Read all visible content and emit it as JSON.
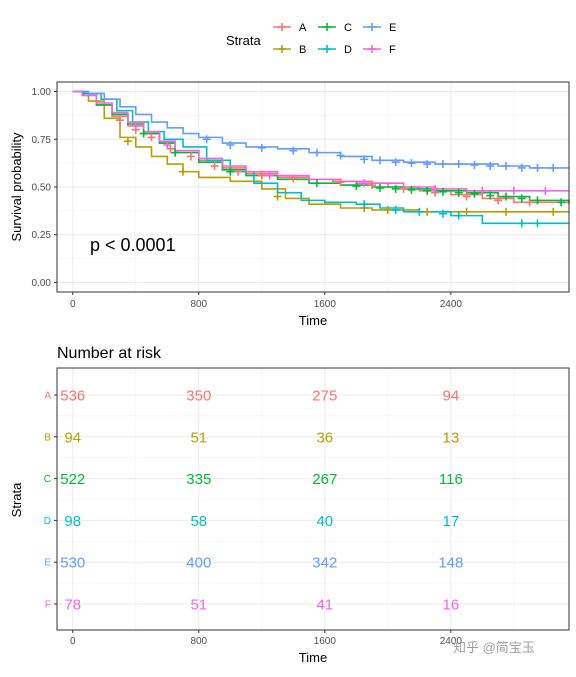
{
  "chart_data": [
    {
      "type": "line",
      "subtype": "kaplan-meier step",
      "xlabel": "Time",
      "ylabel": "Survival probability",
      "xlim": [
        -100,
        3150
      ],
      "ylim": [
        -0.05,
        1.05
      ],
      "x_ticks": [
        "0",
        "800",
        "1600",
        "2400"
      ],
      "y_ticks": [
        "0.00",
        "0.25",
        "0.50",
        "0.75",
        "1.00"
      ],
      "grid": true,
      "legend": {
        "title": "Strata",
        "position": "top",
        "entries": [
          "A",
          "B",
          "C",
          "D",
          "E",
          "F"
        ]
      },
      "annotation": "p < 0.0001",
      "series": [
        {
          "name": "A",
          "color": "#F8766D",
          "x": [
            0,
            60,
            150,
            250,
            350,
            450,
            550,
            650,
            800,
            950,
            1100,
            1300,
            1500,
            1650,
            1800,
            2000,
            2200,
            2400,
            2600,
            2800,
            3150
          ],
          "y": [
            1.0,
            0.98,
            0.93,
            0.87,
            0.82,
            0.78,
            0.73,
            0.69,
            0.64,
            0.6,
            0.57,
            0.55,
            0.54,
            0.53,
            0.52,
            0.5,
            0.48,
            0.46,
            0.44,
            0.42,
            0.41
          ],
          "censor_x": [
            300,
            400,
            500,
            620,
            750,
            900,
            1050,
            1200,
            1400,
            1700,
            1900,
            2100,
            2300,
            2500,
            2700,
            2900
          ],
          "censor_y": [
            0.85,
            0.8,
            0.76,
            0.7,
            0.66,
            0.61,
            0.58,
            0.56,
            0.545,
            0.525,
            0.51,
            0.49,
            0.47,
            0.45,
            0.43,
            0.42
          ]
        },
        {
          "name": "B",
          "color": "#B79F00",
          "x": [
            0,
            100,
            200,
            300,
            400,
            500,
            600,
            700,
            800,
            1000,
            1200,
            1350,
            1500,
            1700,
            1900,
            2200,
            2500,
            2800,
            3150
          ],
          "y": [
            1.0,
            0.95,
            0.86,
            0.76,
            0.71,
            0.66,
            0.62,
            0.58,
            0.55,
            0.53,
            0.49,
            0.44,
            0.41,
            0.39,
            0.38,
            0.37,
            0.37,
            0.37,
            0.37
          ],
          "censor_x": [
            350,
            700,
            1300,
            1850,
            2000,
            2250,
            2500,
            2750,
            3050
          ],
          "censor_y": [
            0.74,
            0.58,
            0.45,
            0.39,
            0.38,
            0.37,
            0.37,
            0.37,
            0.37
          ]
        },
        {
          "name": "C",
          "color": "#00BA38",
          "x": [
            0,
            70,
            150,
            250,
            350,
            450,
            550,
            650,
            800,
            950,
            1100,
            1300,
            1500,
            1700,
            1900,
            2100,
            2300,
            2500,
            2700,
            2900,
            3150
          ],
          "y": [
            1.0,
            0.98,
            0.93,
            0.88,
            0.83,
            0.78,
            0.73,
            0.68,
            0.63,
            0.59,
            0.56,
            0.54,
            0.52,
            0.51,
            0.5,
            0.49,
            0.48,
            0.47,
            0.45,
            0.43,
            0.42
          ],
          "censor_x": [
            450,
            650,
            1000,
            1550,
            1800,
            1950,
            2050,
            2150,
            2250,
            2350,
            2450,
            2550,
            2650,
            2750,
            2850,
            2950,
            3100
          ],
          "censor_y": [
            0.78,
            0.68,
            0.58,
            0.52,
            0.505,
            0.495,
            0.49,
            0.485,
            0.48,
            0.475,
            0.47,
            0.465,
            0.455,
            0.45,
            0.44,
            0.43,
            0.42
          ]
        },
        {
          "name": "D",
          "color": "#00BFC4",
          "x": [
            0,
            80,
            180,
            280,
            380,
            480,
            580,
            700,
            850,
            1000,
            1150,
            1300,
            1450,
            1600,
            1800,
            1950,
            2100,
            2400,
            2600,
            3150
          ],
          "y": [
            1.0,
            0.99,
            0.96,
            0.9,
            0.84,
            0.79,
            0.75,
            0.71,
            0.64,
            0.58,
            0.52,
            0.47,
            0.43,
            0.42,
            0.41,
            0.39,
            0.37,
            0.35,
            0.31,
            0.31
          ],
          "censor_x": [
            1850,
            2050,
            2200,
            2350,
            2450,
            2850,
            2950
          ],
          "censor_y": [
            0.41,
            0.38,
            0.37,
            0.36,
            0.35,
            0.31,
            0.31
          ]
        },
        {
          "name": "E",
          "color": "#619CFF",
          "x": [
            0,
            100,
            200,
            300,
            400,
            500,
            600,
            700,
            800,
            950,
            1100,
            1300,
            1500,
            1700,
            1900,
            2100,
            2300,
            2500,
            2700,
            2900,
            3150
          ],
          "y": [
            1.0,
            0.99,
            0.96,
            0.92,
            0.88,
            0.84,
            0.81,
            0.78,
            0.76,
            0.73,
            0.71,
            0.7,
            0.68,
            0.66,
            0.64,
            0.63,
            0.62,
            0.62,
            0.61,
            0.6,
            0.6
          ],
          "censor_x": [
            850,
            1000,
            1200,
            1400,
            1550,
            1700,
            1850,
            1950,
            2050,
            2150,
            2250,
            2350,
            2450,
            2550,
            2650,
            2750,
            2850,
            2950,
            3050
          ],
          "censor_y": [
            0.75,
            0.72,
            0.705,
            0.69,
            0.68,
            0.665,
            0.645,
            0.64,
            0.63,
            0.625,
            0.62,
            0.62,
            0.62,
            0.615,
            0.61,
            0.61,
            0.6,
            0.6,
            0.6
          ]
        },
        {
          "name": "F",
          "color": "#F564E3",
          "x": [
            0,
            60,
            150,
            250,
            350,
            450,
            550,
            650,
            800,
            950,
            1100,
            1300,
            1500,
            1700,
            1900,
            2100,
            2300,
            2500,
            2700,
            2900,
            3150
          ],
          "y": [
            1.0,
            0.98,
            0.94,
            0.89,
            0.84,
            0.79,
            0.74,
            0.69,
            0.65,
            0.61,
            0.58,
            0.56,
            0.54,
            0.53,
            0.52,
            0.5,
            0.49,
            0.48,
            0.48,
            0.48,
            0.48
          ],
          "censor_x": [
            400,
            600,
            1250,
            1850,
            2300,
            2600,
            2800,
            3000
          ],
          "censor_y": [
            0.82,
            0.72,
            0.56,
            0.52,
            0.49,
            0.48,
            0.48,
            0.48
          ]
        }
      ]
    },
    {
      "type": "table",
      "title": "Number at risk",
      "xlabel": "Time",
      "ylabel": "Strata",
      "x_ticks": [
        "0",
        "800",
        "1600",
        "2400"
      ],
      "columns": [
        0,
        800,
        1600,
        2400
      ],
      "rows": [
        {
          "name": "A",
          "color": "#F8766D",
          "values": [
            "536",
            "350",
            "275",
            "94"
          ]
        },
        {
          "name": "B",
          "color": "#B79F00",
          "values": [
            "94",
            "51",
            "36",
            "13"
          ]
        },
        {
          "name": "C",
          "color": "#00BA38",
          "values": [
            "522",
            "335",
            "267",
            "116"
          ]
        },
        {
          "name": "D",
          "color": "#00BFC4",
          "values": [
            "98",
            "58",
            "40",
            "17"
          ]
        },
        {
          "name": "E",
          "color": "#619CFF",
          "values": [
            "530",
            "400",
            "342",
            "148"
          ]
        },
        {
          "name": "F",
          "color": "#F564E3",
          "values": [
            "78",
            "51",
            "41",
            "16"
          ]
        }
      ]
    }
  ],
  "watermark": "知乎 @简宝玉"
}
